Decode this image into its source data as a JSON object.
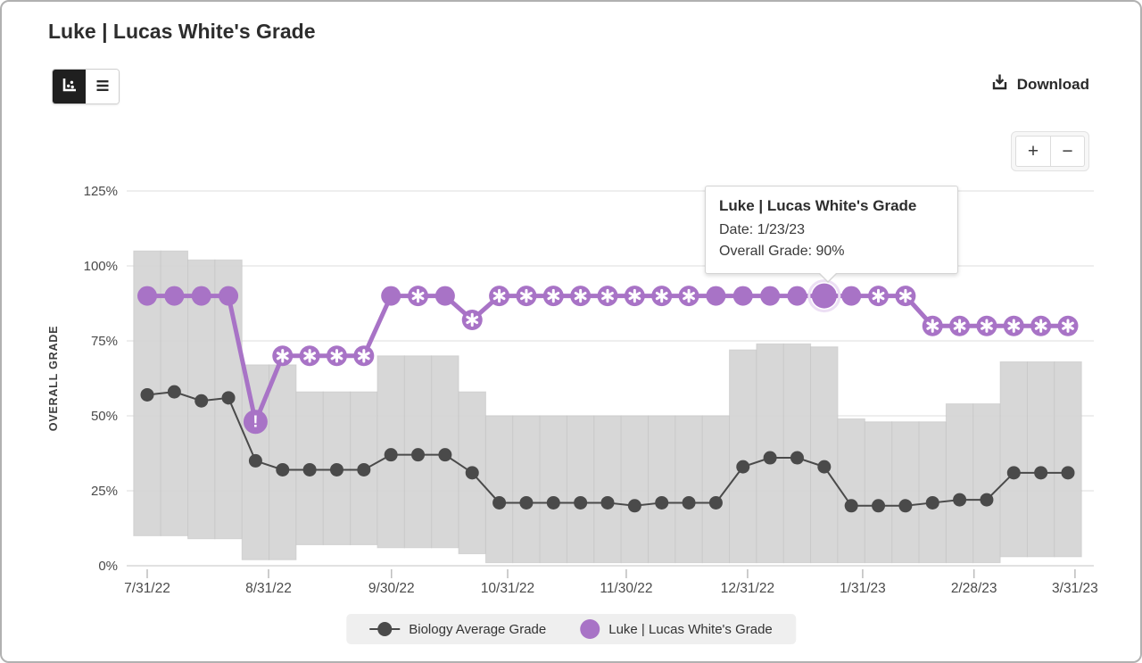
{
  "header": {
    "title": "Luke | Lucas White's Grade"
  },
  "toolbar": {
    "view_toggle": {
      "active_view": "chart",
      "chart_icon": "bar-chart-icon",
      "list_icon": "list-icon"
    },
    "download_label": "Download",
    "download_icon": "download-icon"
  },
  "zoom_controls": {
    "zoom_in_label": "+",
    "zoom_out_label": "−"
  },
  "tooltip": {
    "title": "Luke | Lucas White's Grade",
    "date": "Date: 1/23/23",
    "grade": "Overall Grade: 90%"
  },
  "legend": {
    "items": [
      {
        "label": "Biology Average Grade",
        "color": "#4a4a4a",
        "marker": "dot-with-line"
      },
      {
        "label": "Luke | Lucas White's Grade",
        "color": "#a873c6",
        "marker": "dot"
      }
    ]
  },
  "chart_data": {
    "type": "line",
    "title": "Luke | Lucas White's Grade",
    "xlabel": "",
    "ylabel": "OVERALL GRADE",
    "ylim": [
      0,
      125
    ],
    "grid": true,
    "legend_position": "bottom",
    "yticks": [
      0,
      25,
      50,
      75,
      100,
      125
    ],
    "ytick_labels": [
      "0%",
      "25%",
      "50%",
      "75%",
      "100%",
      "125%"
    ],
    "xtick_labels": [
      "7/31/22",
      "8/31/22",
      "9/30/22",
      "10/31/22",
      "11/30/22",
      "12/31/22",
      "1/31/23",
      "2/28/23",
      "3/31/23"
    ],
    "xtick_week_positions": [
      0,
      4.48,
      9.02,
      13.31,
      17.69,
      22.17,
      26.42,
      30.53,
      34.26
    ],
    "x_unit": "week-index",
    "series": [
      {
        "name": "Biology Average Grade",
        "color": "#4a4a4a",
        "values": [
          57,
          58,
          55,
          56,
          35,
          32,
          32,
          32,
          32,
          37,
          37,
          37,
          31,
          21,
          21,
          21,
          21,
          21,
          20,
          21,
          21,
          21,
          33,
          36,
          36,
          33,
          20,
          20,
          20,
          21,
          22,
          22,
          31,
          31,
          31
        ]
      },
      {
        "name": "Luke | Lucas White's Grade",
        "color": "#a873c6",
        "values": [
          90,
          90,
          90,
          90,
          48,
          70,
          70,
          70,
          70,
          90,
          90,
          90,
          82,
          90,
          90,
          90,
          90,
          90,
          90,
          90,
          90,
          90,
          90,
          90,
          90,
          90,
          90,
          90,
          90,
          80,
          80,
          80,
          80,
          80,
          80
        ],
        "point_markers": [
          "solid",
          "solid",
          "solid",
          "solid",
          "alert",
          "star",
          "star",
          "star",
          "star",
          "solid",
          "star",
          "solid",
          "star",
          "star",
          "star",
          "star",
          "star",
          "star",
          "star",
          "star",
          "star",
          "solid",
          "solid",
          "solid",
          "solid",
          "solid",
          "solid",
          "star",
          "star",
          "star",
          "star",
          "star",
          "star",
          "star",
          "star"
        ],
        "highlighted_point": {
          "index": 25,
          "date": "1/23/23",
          "value": 90
        }
      }
    ],
    "background_range_bars": {
      "color": "#d4d4d4",
      "hi": [
        105,
        105,
        102,
        102,
        67,
        67,
        58,
        58,
        58,
        70,
        70,
        70,
        58,
        50,
        50,
        50,
        50,
        50,
        50,
        50,
        50,
        50,
        72,
        74,
        74,
        73,
        49,
        48,
        48,
        48,
        54,
        54,
        68,
        68,
        68
      ],
      "lo": [
        10,
        10,
        9,
        9,
        2,
        2,
        7,
        7,
        7,
        6,
        6,
        6,
        4,
        1,
        1,
        1,
        1,
        1,
        1,
        1,
        1,
        1,
        1,
        1,
        1,
        1,
        1,
        1,
        1,
        1,
        1,
        1,
        3,
        3,
        3
      ]
    }
  }
}
